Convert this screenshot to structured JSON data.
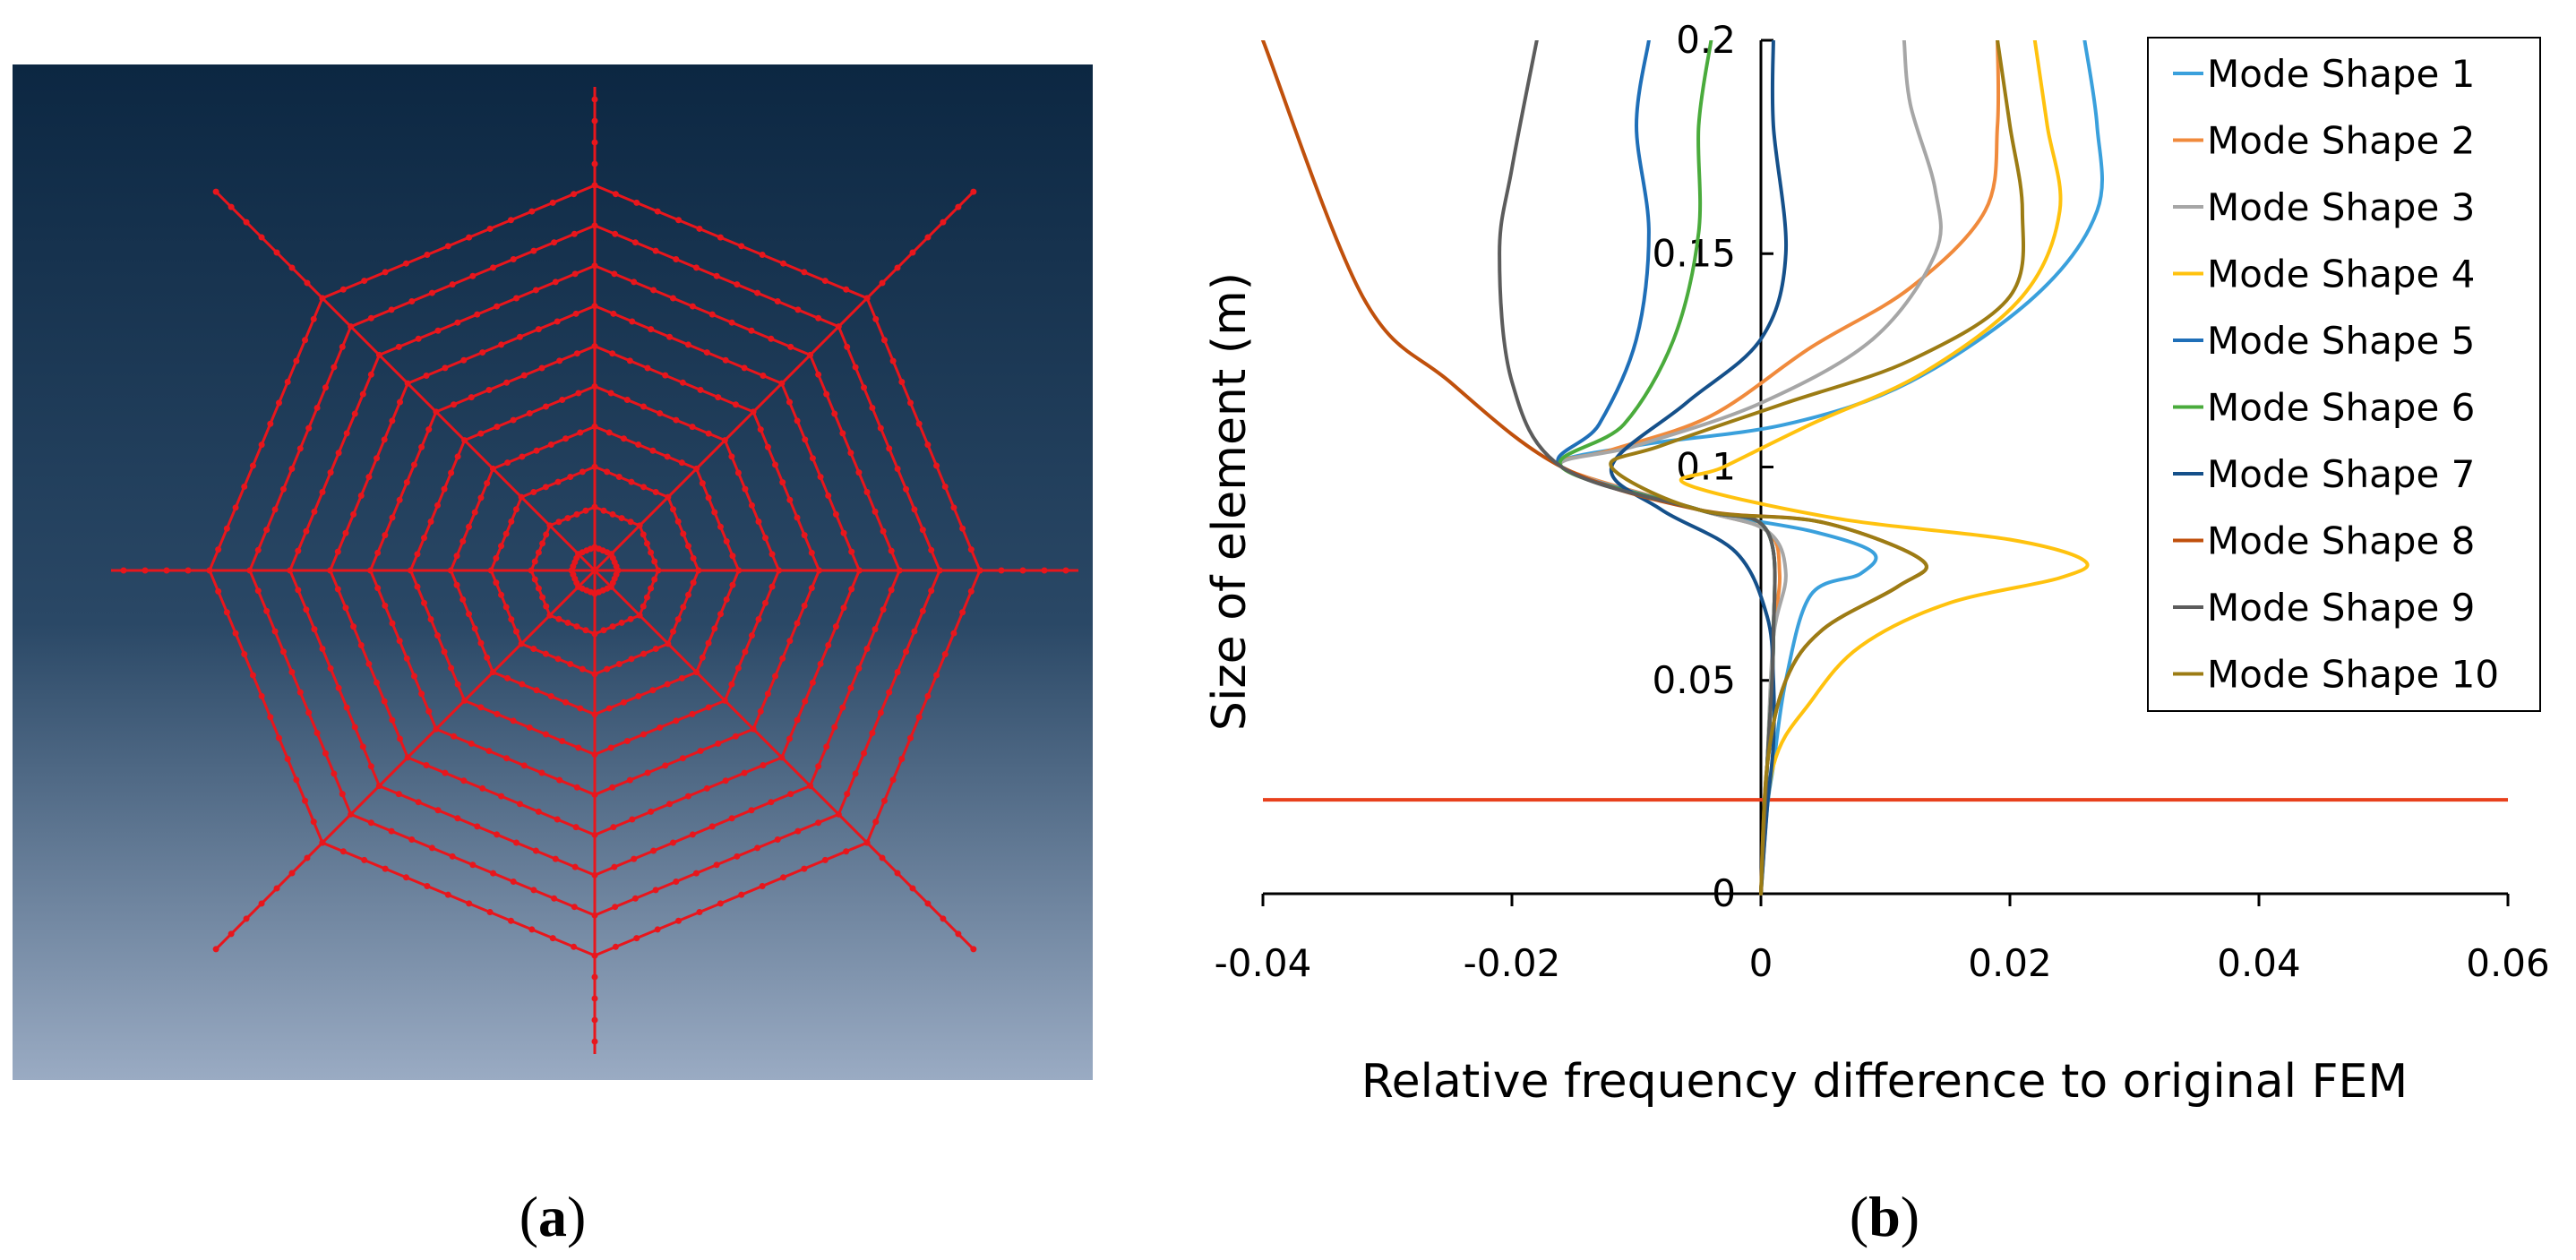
{
  "panels": {
    "a": {
      "open": "(",
      "letter": "a",
      "close": ")"
    },
    "b": {
      "open": "(",
      "letter": "b",
      "close": ")"
    }
  },
  "mesh": {
    "description_free": true,
    "rays": 8,
    "rings": 10,
    "background_top": "#0c2742",
    "background_bottom": "#9aabc3",
    "line_color": "#e8161c"
  },
  "chart_data": {
    "type": "line",
    "title": "",
    "xlabel": "Relative frequency difference to original FEM",
    "ylabel": "Size of element (m)",
    "xlim": [
      -0.04,
      0.06
    ],
    "ylim": [
      0,
      0.2
    ],
    "x_ticks": [
      "-0.04",
      "-0.02",
      "0",
      "0.02",
      "0.04",
      "0.06"
    ],
    "y_ticks": [
      "0",
      "0.05",
      "0.1",
      "0.15",
      "0.2"
    ],
    "legend_position": "top-right",
    "reference_line": {
      "y": 0.022,
      "color": "#e8401c"
    },
    "series": [
      {
        "name": "Mode Shape 1",
        "color": "#3aa0dc",
        "points": [
          [
            0,
            0
          ],
          [
            0.0005,
            0.02
          ],
          [
            0.001,
            0.03
          ],
          [
            0.002,
            0.05
          ],
          [
            0.004,
            0.07
          ],
          [
            0.008,
            0.075
          ],
          [
            0.009,
            0.08
          ],
          [
            0.004,
            0.085
          ],
          [
            -0.005,
            0.09
          ],
          [
            -0.016,
            0.1
          ],
          [
            -0.01,
            0.105
          ],
          [
            0.002,
            0.11
          ],
          [
            0.012,
            0.12
          ],
          [
            0.022,
            0.14
          ],
          [
            0.027,
            0.16
          ],
          [
            0.027,
            0.18
          ],
          [
            0.026,
            0.2
          ]
        ]
      },
      {
        "name": "Mode Shape 2",
        "color": "#f08a3c",
        "points": [
          [
            0,
            0
          ],
          [
            0.0005,
            0.03
          ],
          [
            0.001,
            0.06
          ],
          [
            0.0015,
            0.075
          ],
          [
            0.0005,
            0.085
          ],
          [
            -0.005,
            0.09
          ],
          [
            -0.016,
            0.1
          ],
          [
            -0.012,
            0.104
          ],
          [
            -0.004,
            0.112
          ],
          [
            0.004,
            0.128
          ],
          [
            0.012,
            0.142
          ],
          [
            0.018,
            0.16
          ],
          [
            0.019,
            0.18
          ],
          [
            0.019,
            0.2
          ]
        ]
      },
      {
        "name": "Mode Shape 3",
        "color": "#a6a6a6",
        "points": [
          [
            0,
            0
          ],
          [
            0.0005,
            0.03
          ],
          [
            0.001,
            0.06
          ],
          [
            0.002,
            0.075
          ],
          [
            0.0005,
            0.085
          ],
          [
            -0.005,
            0.09
          ],
          [
            -0.016,
            0.1
          ],
          [
            -0.01,
            0.105
          ],
          [
            0.0,
            0.115
          ],
          [
            0.009,
            0.13
          ],
          [
            0.014,
            0.15
          ],
          [
            0.014,
            0.165
          ],
          [
            0.012,
            0.185
          ],
          [
            0.0115,
            0.2
          ]
        ]
      },
      {
        "name": "Mode Shape 4",
        "color": "#ffc20e",
        "points": [
          [
            0,
            0
          ],
          [
            0.001,
            0.03
          ],
          [
            0.004,
            0.045
          ],
          [
            0.008,
            0.058
          ],
          [
            0.015,
            0.068
          ],
          [
            0.024,
            0.074
          ],
          [
            0.026,
            0.078
          ],
          [
            0.02,
            0.083
          ],
          [
            0.006,
            0.088
          ],
          [
            -0.006,
            0.096
          ],
          [
            -0.003,
            0.1
          ],
          [
            0.004,
            0.11
          ],
          [
            0.013,
            0.122
          ],
          [
            0.021,
            0.14
          ],
          [
            0.024,
            0.16
          ],
          [
            0.023,
            0.18
          ],
          [
            0.022,
            0.2
          ]
        ]
      },
      {
        "name": "Mode Shape 5",
        "color": "#1f6fb8",
        "points": [
          [
            0,
            0
          ],
          [
            0.0005,
            0.03
          ],
          [
            0.001,
            0.06
          ],
          [
            0.0005,
            0.085
          ],
          [
            -0.005,
            0.09
          ],
          [
            -0.016,
            0.1
          ],
          [
            -0.013,
            0.11
          ],
          [
            -0.01,
            0.13
          ],
          [
            -0.009,
            0.155
          ],
          [
            -0.01,
            0.18
          ],
          [
            -0.009,
            0.2
          ]
        ]
      },
      {
        "name": "Mode Shape 6",
        "color": "#4aab3c",
        "points": [
          [
            0,
            0
          ],
          [
            0.0005,
            0.03
          ],
          [
            0.001,
            0.06
          ],
          [
            0.0005,
            0.085
          ],
          [
            -0.005,
            0.09
          ],
          [
            -0.016,
            0.1
          ],
          [
            -0.011,
            0.11
          ],
          [
            -0.007,
            0.13
          ],
          [
            -0.005,
            0.155
          ],
          [
            -0.005,
            0.18
          ],
          [
            -0.004,
            0.2
          ]
        ]
      },
      {
        "name": "Mode Shape 7",
        "color": "#15508a",
        "points": [
          [
            0,
            0
          ],
          [
            0.0005,
            0.02
          ],
          [
            0.001,
            0.035
          ],
          [
            0.001,
            0.05
          ],
          [
            0.0005,
            0.065
          ],
          [
            -0.002,
            0.08
          ],
          [
            -0.008,
            0.09
          ],
          [
            -0.012,
            0.1
          ],
          [
            -0.006,
            0.115
          ],
          [
            0.0,
            0.13
          ],
          [
            0.002,
            0.15
          ],
          [
            0.001,
            0.18
          ],
          [
            0.001,
            0.2
          ]
        ]
      },
      {
        "name": "Mode Shape 8",
        "color": "#c0500c",
        "points": [
          [
            0,
            0
          ],
          [
            0.0005,
            0.03
          ],
          [
            0.002,
            0.05
          ],
          [
            0.005,
            0.062
          ],
          [
            0.011,
            0.072
          ],
          [
            0.013,
            0.078
          ],
          [
            0.005,
            0.087
          ],
          [
            -0.005,
            0.09
          ],
          [
            -0.016,
            0.1
          ],
          [
            -0.025,
            0.12
          ],
          [
            -0.032,
            0.14
          ],
          [
            -0.04,
            0.2
          ]
        ]
      },
      {
        "name": "Mode Shape 9",
        "color": "#5c5c5c",
        "points": [
          [
            0,
            0
          ],
          [
            0.0005,
            0.03
          ],
          [
            0.001,
            0.06
          ],
          [
            0.0005,
            0.085
          ],
          [
            -0.005,
            0.09
          ],
          [
            -0.016,
            0.1
          ],
          [
            -0.02,
            0.12
          ],
          [
            -0.021,
            0.15
          ],
          [
            -0.02,
            0.17
          ],
          [
            -0.018,
            0.2
          ]
        ]
      },
      {
        "name": "Mode Shape 10",
        "color": "#9c7c14",
        "points": [
          [
            0,
            0
          ],
          [
            0.0005,
            0.03
          ],
          [
            0.002,
            0.05
          ],
          [
            0.005,
            0.062
          ],
          [
            0.011,
            0.072
          ],
          [
            0.013,
            0.078
          ],
          [
            0.005,
            0.087
          ],
          [
            -0.005,
            0.09
          ],
          [
            -0.012,
            0.1
          ],
          [
            -0.008,
            0.105
          ],
          [
            0.002,
            0.115
          ],
          [
            0.012,
            0.125
          ],
          [
            0.02,
            0.14
          ],
          [
            0.021,
            0.16
          ],
          [
            0.02,
            0.18
          ],
          [
            0.019,
            0.2
          ]
        ]
      }
    ]
  }
}
